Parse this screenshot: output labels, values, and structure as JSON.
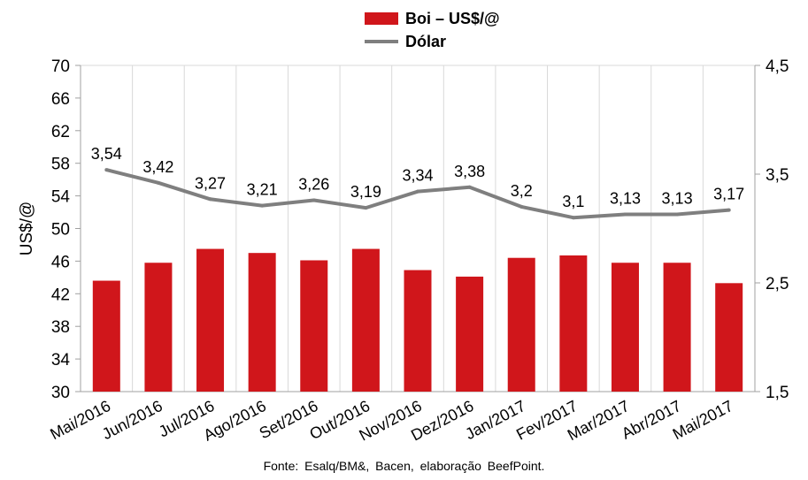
{
  "legend": {
    "bar_label": "Boi – US$/@",
    "line_label": "Dólar"
  },
  "source_note": "Fonte:  Esalq/BM&,  Bacen,  elaboração  BeefPoint.",
  "colors": {
    "bar": "#d0161b",
    "line": "#7f7f7f",
    "grid": "#d9d9d9"
  },
  "chart_data": {
    "type": "bar",
    "categories": [
      "Mai/2016",
      "Jun/2016",
      "Jul/2016",
      "Ago/2016",
      "Set/2016",
      "Out/2016",
      "Nov/2016",
      "Dez/2016",
      "Jan/2017",
      "Fev/2017",
      "Mar/2017",
      "Abr/2017",
      "Mai/2017"
    ],
    "series": [
      {
        "name": "Boi – US$/@",
        "type": "bar",
        "axis": "left",
        "values": [
          43.6,
          45.8,
          47.5,
          47.0,
          46.1,
          47.5,
          44.9,
          44.1,
          46.4,
          46.7,
          45.8,
          45.8,
          43.3
        ]
      },
      {
        "name": "Dólar",
        "type": "line",
        "axis": "right",
        "values": [
          3.54,
          3.42,
          3.27,
          3.21,
          3.26,
          3.19,
          3.34,
          3.38,
          3.2,
          3.1,
          3.13,
          3.13,
          3.17
        ],
        "labels": [
          "3,54",
          "3,42",
          "3,27",
          "3,21",
          "3,26",
          "3,19",
          "3,34",
          "3,38",
          "3,2",
          "3,1",
          "3,13",
          "3,13",
          "3,17"
        ]
      }
    ],
    "ylabel": "US$/@",
    "ylim": [
      30,
      70
    ],
    "yticks": [
      "30",
      "34",
      "38",
      "42",
      "46",
      "50",
      "54",
      "58",
      "62",
      "66",
      "70"
    ],
    "y2lim": [
      1.5,
      4.5
    ],
    "y2ticks": [
      "1,5",
      "2,5",
      "3,5",
      "4,5"
    ],
    "grid": "vertical"
  }
}
